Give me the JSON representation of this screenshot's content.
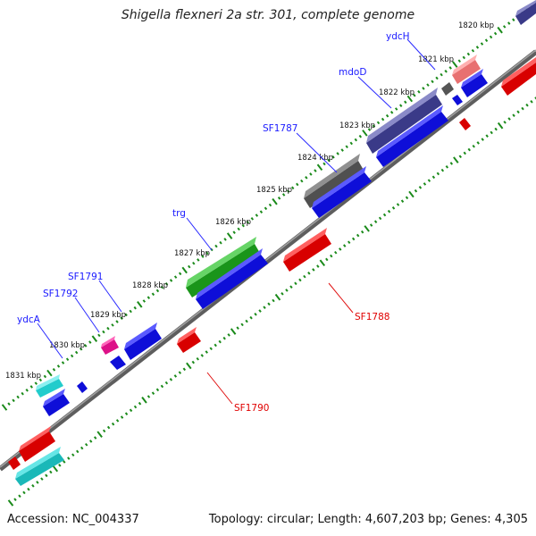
{
  "title": "Shigella flexneri 2a str. 301, complete genome",
  "accession_text": "Accession: NC_004337",
  "summary_text": "Topology: circular; Length: 4,607,203 bp; Genes: 4,305",
  "kbp_labels": [
    "1820 kbp",
    "1821 kbp",
    "1822 kbp",
    "1823 kbp",
    "1824 kbp",
    "1825 kbp",
    "1826 kbp",
    "1827 kbp",
    "1828 kbp",
    "1829 kbp",
    "1830 kbp",
    "1831 kbp"
  ],
  "gene_labels": {
    "forward": [
      "ydcH",
      "mdoD",
      "SF1787",
      "trg",
      "SF1791",
      "SF1792",
      "ydcA"
    ],
    "reverse": [
      "SF1788",
      "SF1790"
    ]
  },
  "colors": {
    "forward_label": "#1a1aff",
    "reverse_label": "#e00000",
    "tick": "#1a8a1a",
    "backbone": "#7a7a7a",
    "blue_cds": "#1010ee",
    "red_cds": "#ee0000",
    "green_gene": "#22aa22",
    "purple_gene": "#4a4a9a",
    "gray_gene": "#5a5a5a",
    "pink_gene": "#f08080",
    "magenta_gene": "#ee2299",
    "cyan_gene": "#22cccc"
  }
}
